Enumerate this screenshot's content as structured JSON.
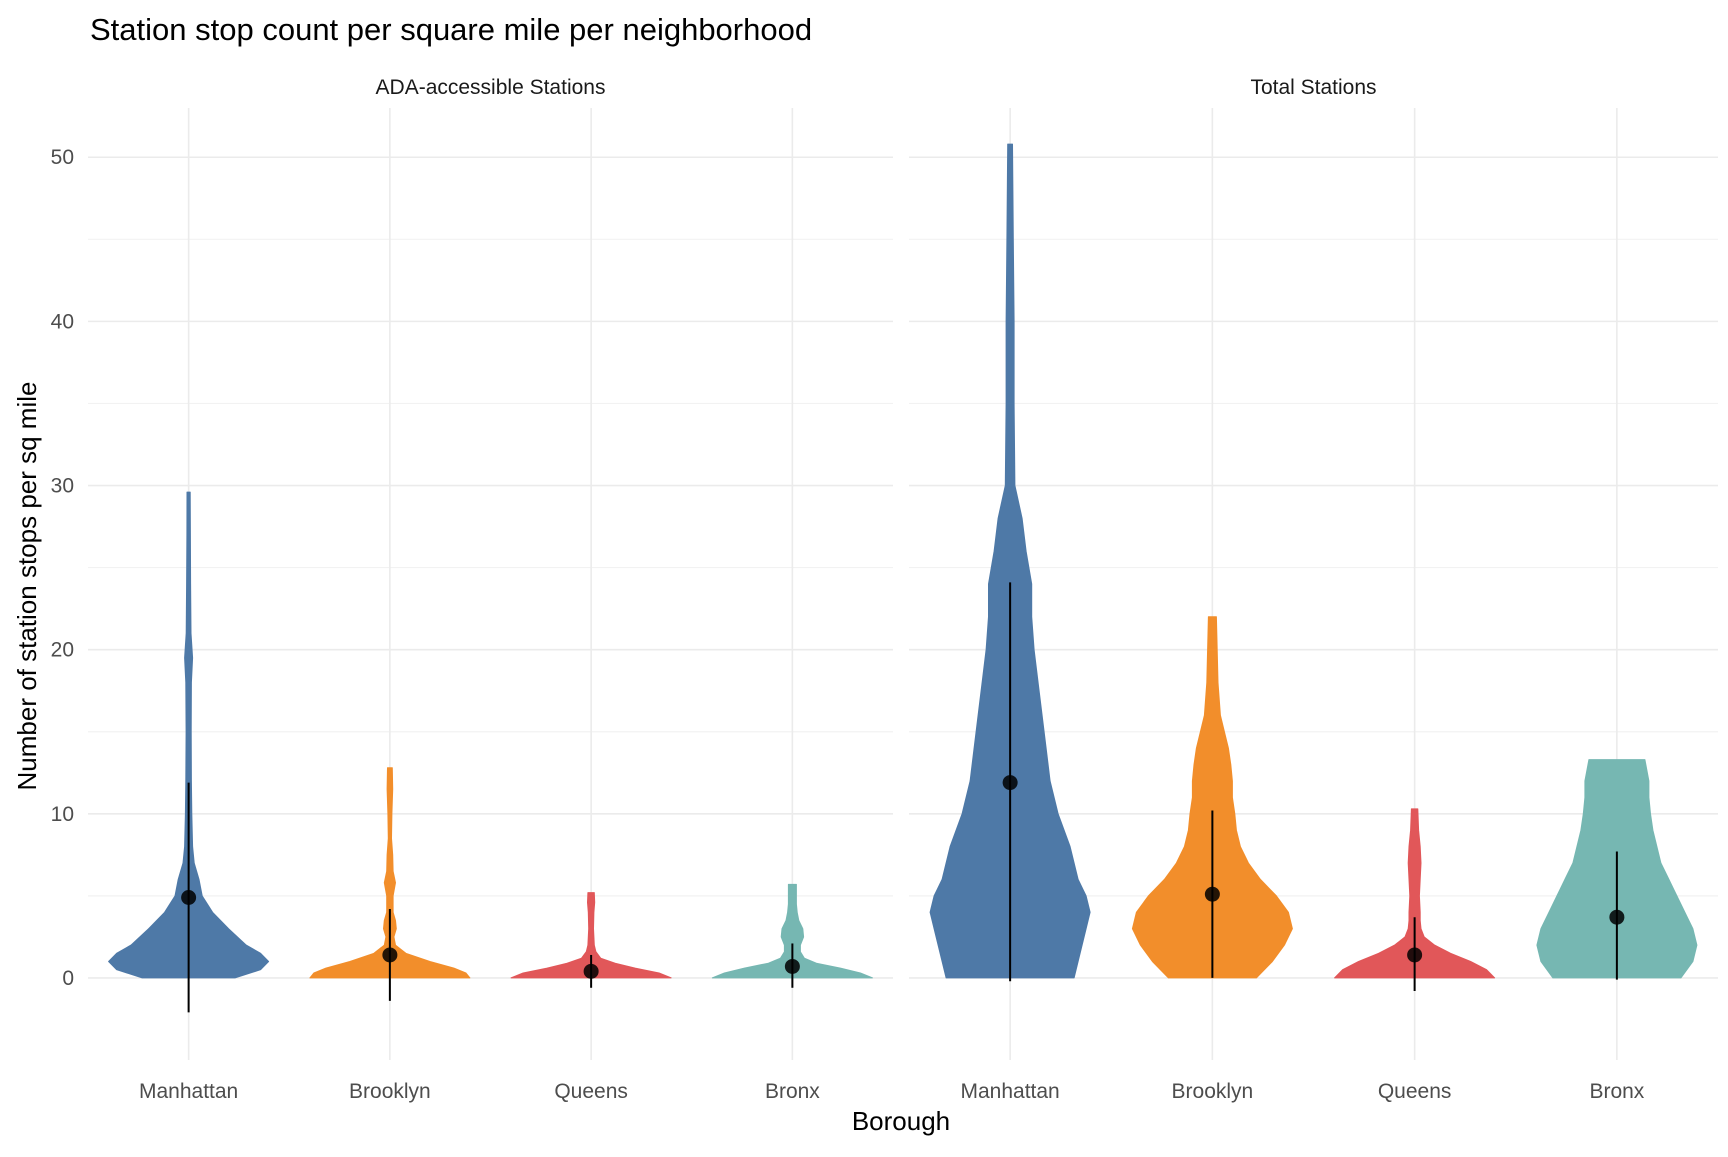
{
  "chart_data": {
    "type": "violin",
    "title": "Station stop count per square mile per neighborhood",
    "xlabel": "Borough",
    "ylabel": "Number of station stops per sq mile",
    "ylim": [
      -5,
      53
    ],
    "yticks": [
      0,
      10,
      20,
      30,
      40,
      50
    ],
    "grid": true,
    "legend": "none",
    "categories": [
      "Manhattan",
      "Brooklyn",
      "Queens",
      "Bronx"
    ],
    "colors": {
      "Manhattan": "#4e79a7",
      "Brooklyn": "#f28e2b",
      "Queens": "#e15759",
      "Bronx": "#76b7b2"
    },
    "panels": [
      {
        "title": "ADA-accessible Stations",
        "series": [
          {
            "category": "Manhattan",
            "min": 0,
            "max": 29.6,
            "mean": 4.9,
            "err_low": -2.1,
            "err_high": 11.9,
            "density": [
              [
                0,
                0.58
              ],
              [
                0.5,
                0.9
              ],
              [
                1,
                1.0
              ],
              [
                1.5,
                0.9
              ],
              [
                2,
                0.72
              ],
              [
                3,
                0.5
              ],
              [
                4,
                0.3
              ],
              [
                5,
                0.17
              ],
              [
                6,
                0.13
              ],
              [
                7,
                0.07
              ],
              [
                8,
                0.05
              ],
              [
                10,
                0.04
              ],
              [
                12,
                0.035
              ],
              [
                15,
                0.032
              ],
              [
                18,
                0.035
              ],
              [
                19.5,
                0.05
              ],
              [
                21,
                0.03
              ],
              [
                24,
                0.025
              ],
              [
                27,
                0.022
              ],
              [
                29.6,
                0.02
              ]
            ]
          },
          {
            "category": "Brooklyn",
            "min": 0,
            "max": 12.8,
            "mean": 1.4,
            "err_low": -1.4,
            "err_high": 4.2,
            "density": [
              [
                0,
                1.0
              ],
              [
                0.3,
                0.95
              ],
              [
                0.6,
                0.8
              ],
              [
                1,
                0.5
              ],
              [
                1.5,
                0.2
              ],
              [
                2,
                0.07
              ],
              [
                2.5,
                0.05
              ],
              [
                3,
                0.08
              ],
              [
                3.5,
                0.07
              ],
              [
                4,
                0.04
              ],
              [
                5,
                0.04
              ],
              [
                5.8,
                0.07
              ],
              [
                6.5,
                0.04
              ],
              [
                7.5,
                0.035
              ],
              [
                8.5,
                0.02
              ],
              [
                10,
                0.025
              ],
              [
                11.5,
                0.035
              ],
              [
                12.8,
                0.03
              ]
            ]
          },
          {
            "category": "Queens",
            "min": 0,
            "max": 5.2,
            "mean": 0.4,
            "err_low": -0.6,
            "err_high": 1.4,
            "density": [
              [
                0,
                1.0
              ],
              [
                0.3,
                0.85
              ],
              [
                0.6,
                0.55
              ],
              [
                0.9,
                0.3
              ],
              [
                1.2,
                0.12
              ],
              [
                1.6,
                0.06
              ],
              [
                2,
                0.04
              ],
              [
                3,
                0.03
              ],
              [
                4,
                0.035
              ],
              [
                4.6,
                0.045
              ],
              [
                5.2,
                0.04
              ]
            ]
          },
          {
            "category": "Bronx",
            "min": 0,
            "max": 5.7,
            "mean": 0.7,
            "err_low": -0.6,
            "err_high": 2.1,
            "density": [
              [
                0,
                1.0
              ],
              [
                0.3,
                0.85
              ],
              [
                0.6,
                0.6
              ],
              [
                0.9,
                0.3
              ],
              [
                1.2,
                0.15
              ],
              [
                1.6,
                0.1
              ],
              [
                2,
                0.1
              ],
              [
                2.5,
                0.14
              ],
              [
                3,
                0.13
              ],
              [
                3.5,
                0.08
              ],
              [
                4,
                0.06
              ],
              [
                4.5,
                0.05
              ],
              [
                5,
                0.05
              ],
              [
                5.7,
                0.05
              ]
            ]
          }
        ]
      },
      {
        "title": "Total Stations",
        "series": [
          {
            "category": "Manhattan",
            "min": 0,
            "max": 50.8,
            "mean": 11.9,
            "err_low": -0.2,
            "err_high": 24.1,
            "density": [
              [
                0,
                0.8
              ],
              [
                1,
                0.85
              ],
              [
                2,
                0.9
              ],
              [
                3,
                0.95
              ],
              [
                4,
                1.0
              ],
              [
                5,
                0.95
              ],
              [
                6,
                0.85
              ],
              [
                8,
                0.75
              ],
              [
                10,
                0.6
              ],
              [
                12,
                0.5
              ],
              [
                14,
                0.45
              ],
              [
                16,
                0.4
              ],
              [
                18,
                0.35
              ],
              [
                20,
                0.3
              ],
              [
                22,
                0.27
              ],
              [
                24,
                0.27
              ],
              [
                26,
                0.2
              ],
              [
                28,
                0.15
              ],
              [
                30,
                0.06
              ],
              [
                35,
                0.05
              ],
              [
                40,
                0.05
              ],
              [
                45,
                0.04
              ],
              [
                50.8,
                0.03
              ]
            ]
          },
          {
            "category": "Brooklyn",
            "min": 0,
            "max": 22.0,
            "mean": 5.1,
            "err_low": 0,
            "err_high": 10.2,
            "density": [
              [
                0,
                0.55
              ],
              [
                1,
                0.75
              ],
              [
                2,
                0.9
              ],
              [
                3,
                1.0
              ],
              [
                4,
                0.95
              ],
              [
                5,
                0.8
              ],
              [
                6,
                0.6
              ],
              [
                7,
                0.45
              ],
              [
                8,
                0.35
              ],
              [
                9,
                0.3
              ],
              [
                10,
                0.28
              ],
              [
                11,
                0.25
              ],
              [
                12,
                0.25
              ],
              [
                13,
                0.23
              ],
              [
                14,
                0.2
              ],
              [
                15,
                0.15
              ],
              [
                16,
                0.1
              ],
              [
                18,
                0.07
              ],
              [
                20,
                0.06
              ],
              [
                22,
                0.05
              ]
            ]
          },
          {
            "category": "Queens",
            "min": 0,
            "max": 10.3,
            "mean": 1.4,
            "err_low": -0.8,
            "err_high": 3.7,
            "density": [
              [
                0,
                1.0
              ],
              [
                0.5,
                0.9
              ],
              [
                1,
                0.7
              ],
              [
                1.5,
                0.45
              ],
              [
                2,
                0.25
              ],
              [
                2.5,
                0.12
              ],
              [
                3,
                0.08
              ],
              [
                3.5,
                0.07
              ],
              [
                4,
                0.07
              ],
              [
                5,
                0.06
              ],
              [
                6,
                0.07
              ],
              [
                7,
                0.08
              ],
              [
                8,
                0.07
              ],
              [
                9,
                0.05
              ],
              [
                10.3,
                0.04
              ]
            ]
          },
          {
            "category": "Bronx",
            "min": 0,
            "max": 13.3,
            "mean": 3.7,
            "err_low": -0.1,
            "err_high": 7.7,
            "density": [
              [
                0,
                0.8
              ],
              [
                1,
                0.95
              ],
              [
                2,
                1.0
              ],
              [
                3,
                0.95
              ],
              [
                4,
                0.85
              ],
              [
                5,
                0.75
              ],
              [
                6,
                0.65
              ],
              [
                7,
                0.55
              ],
              [
                8,
                0.5
              ],
              [
                9,
                0.45
              ],
              [
                10,
                0.42
              ],
              [
                11,
                0.4
              ],
              [
                12,
                0.4
              ],
              [
                13.3,
                0.35
              ]
            ]
          }
        ]
      }
    ]
  }
}
